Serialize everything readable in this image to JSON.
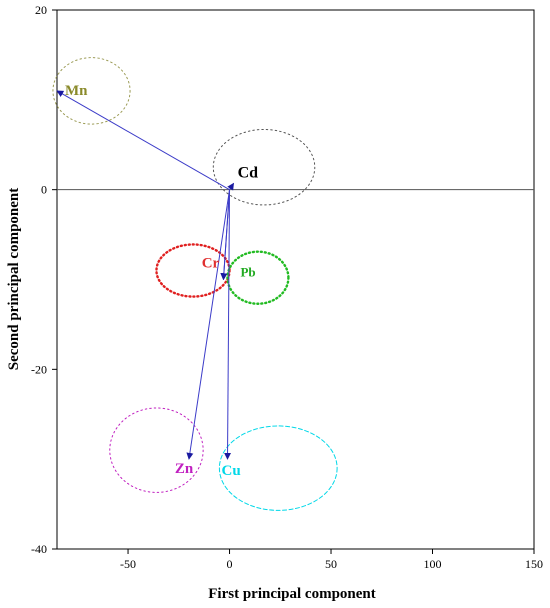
{
  "chart_data": {
    "type": "scatter",
    "title": "",
    "xlabel": "First principal component",
    "ylabel": "Second principal component",
    "xlim": [
      -85,
      150
    ],
    "ylim": [
      -40,
      20
    ],
    "xticks": [
      -50,
      0,
      50,
      100,
      150
    ],
    "yticks": [
      20,
      0,
      -20,
      -40
    ],
    "xtick_labels": [
      "-50",
      "0",
      "50",
      "100",
      "150"
    ],
    "ytick_labels": [
      "20",
      "0",
      "-20",
      "-40"
    ],
    "grid": false,
    "zero_line": true,
    "arrow_color": "#3b3bc8",
    "origin": [
      0,
      0
    ],
    "loadings": [
      {
        "name": "Mn",
        "x": -85,
        "y": 11,
        "color": "#8a8a2a"
      },
      {
        "name": "Cd",
        "x": 2,
        "y": 0.7,
        "color": "#000000"
      },
      {
        "name": "Cr",
        "x": -3,
        "y": -10,
        "color": "#e03030"
      },
      {
        "name": "Pb",
        "x": -3,
        "y": -10,
        "color": "#22aa22"
      },
      {
        "name": "Zn",
        "x": -20,
        "y": -30,
        "color": "#c020c0"
      },
      {
        "name": "Cu",
        "x": -1,
        "y": -30,
        "color": "#00d8e8"
      }
    ],
    "groups": [
      {
        "name": "Mn",
        "cx": -68,
        "cy": 11,
        "rx": 19,
        "ry": 3.7,
        "color": "#9b9b55",
        "dash": "dotted"
      },
      {
        "name": "Cd",
        "cx": 17,
        "cy": 2.5,
        "rx": 25,
        "ry": 4.2,
        "color": "#555555",
        "dash": "dotted"
      },
      {
        "name": "Cr",
        "cx": -18,
        "cy": -9,
        "rx": 18,
        "ry": 2.9,
        "color": "#e02020",
        "dash": "dotted-bold"
      },
      {
        "name": "Pb",
        "cx": 14,
        "cy": -9.8,
        "rx": 15,
        "ry": 2.9,
        "color": "#22bb22",
        "dash": "dotted-bold"
      },
      {
        "name": "Zn",
        "cx": -36,
        "cy": -29,
        "rx": 23,
        "ry": 4.7,
        "color": "#c020c0",
        "dash": "dotted"
      },
      {
        "name": "Cu",
        "cx": 24,
        "cy": -31,
        "rx": 29,
        "ry": 4.7,
        "color": "#00d8e8",
        "dash": "dashed"
      }
    ]
  }
}
